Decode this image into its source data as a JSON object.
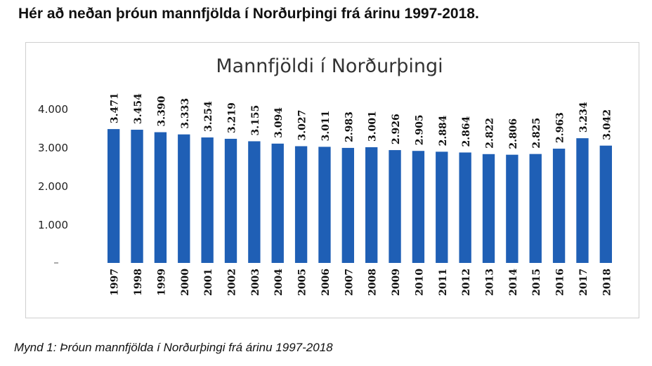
{
  "page": {
    "heading": "Hér að neðan þróun mannfjölda í Norðurþingi frá árinu 1997-2018.",
    "caption": "Mynd 1: Þróun mannfjölda í Norðurþingi frá árinu 1997-2018"
  },
  "chart_data": {
    "type": "bar",
    "title": "Mannfjöldi í Norðurþingi",
    "xlabel": "",
    "ylabel": "",
    "categories": [
      "1997",
      "1998",
      "1999",
      "2000",
      "2001",
      "2002",
      "2003",
      "2004",
      "2005",
      "2006",
      "2007",
      "2008",
      "2009",
      "2010",
      "2011",
      "2012",
      "2013",
      "2014",
      "2015",
      "2016",
      "2017",
      "2018"
    ],
    "values": [
      3471,
      3454,
      3390,
      3333,
      3254,
      3219,
      3155,
      3094,
      3027,
      3011,
      2983,
      3001,
      2926,
      2905,
      2884,
      2864,
      2822,
      2806,
      2825,
      2963,
      3234,
      3042
    ],
    "value_labels": [
      "3.471",
      "3.454",
      "3.390",
      "3.333",
      "3.254",
      "3.219",
      "3.155",
      "3.094",
      "3.027",
      "3.011",
      "2.983",
      "3.001",
      "2.926",
      "2.905",
      "2.884",
      "2.864",
      "2.822",
      "2.806",
      "2.825",
      "2.963",
      "3.234",
      "3.042"
    ],
    "y_ticks": [
      1000,
      2000,
      3000,
      4000
    ],
    "y_tick_labels": [
      "1.000",
      "2.000",
      "3.000",
      "4.000"
    ],
    "ylim": [
      0,
      4000
    ],
    "grid": false,
    "legend": "none",
    "bar_color": "#1f5fb5"
  }
}
